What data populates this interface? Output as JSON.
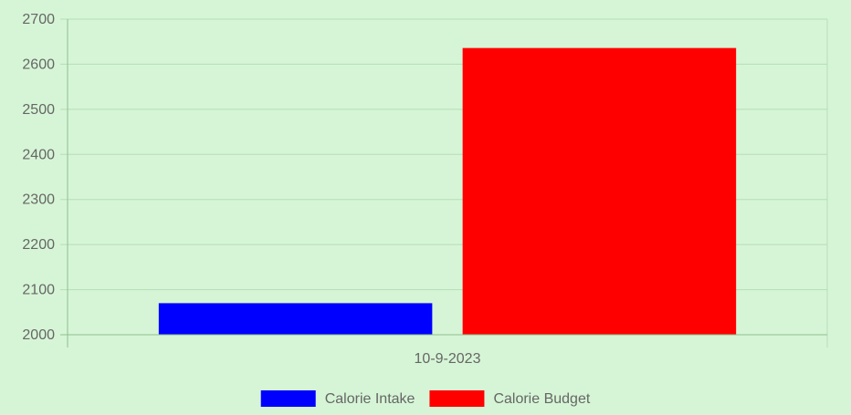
{
  "chart_data": {
    "type": "bar",
    "categories": [
      "10-9-2023"
    ],
    "series": [
      {
        "name": "Calorie Intake",
        "values": [
          2070
        ],
        "color": "#0000ff"
      },
      {
        "name": "Calorie Budget",
        "values": [
          2636
        ],
        "color": "#ff0000"
      }
    ],
    "ylim": [
      2000,
      2700
    ],
    "yticks": [
      2000,
      2100,
      2200,
      2300,
      2400,
      2500,
      2600,
      2700
    ],
    "ytick_labels": [
      "2000",
      "2100",
      "2200",
      "2300",
      "2400",
      "2500",
      "2600",
      "2700"
    ],
    "grid": true,
    "legend_position": "bottom",
    "title": "",
    "xlabel": "",
    "ylabel": ""
  },
  "colors": {
    "background": "#d6f5d6",
    "grid": "#b7ddb7",
    "axis": "#8fbf8f",
    "text": "#666666"
  }
}
